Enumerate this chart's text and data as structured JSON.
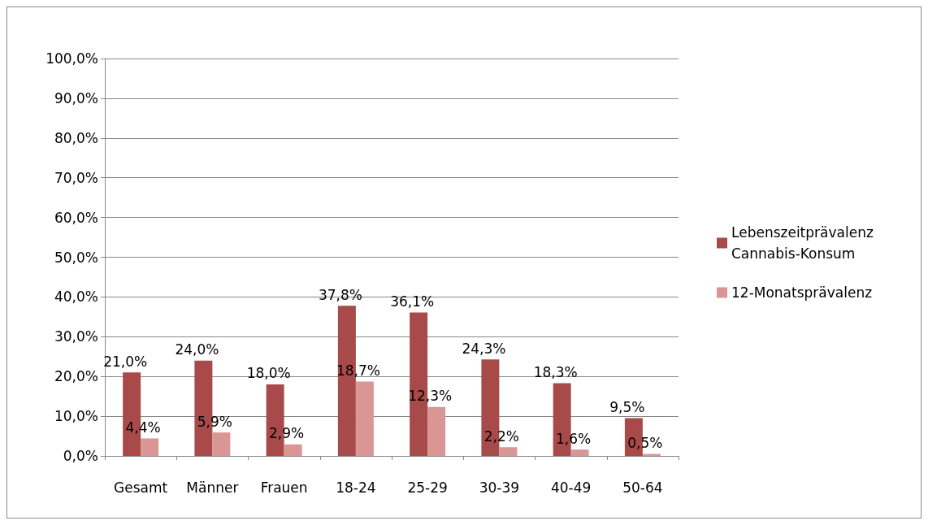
{
  "chart_data": {
    "type": "bar",
    "categories": [
      "Gesamt",
      "Männer",
      "Frauen",
      "18-24",
      "25-29",
      "30-39",
      "40-49",
      "50-64"
    ],
    "series": [
      {
        "name": "Lebenszeitprävalenz Cannabis-Konsum",
        "color": "#a84a4a",
        "values": [
          21.0,
          24.0,
          18.0,
          37.8,
          36.1,
          24.3,
          18.3,
          9.5
        ],
        "value_labels": [
          "21,0%",
          "24,0%",
          "18,0%",
          "37,8%",
          "36,1%",
          "24,3%",
          "18,3%",
          "9,5%"
        ]
      },
      {
        "name": "12-Monatsprävalenz",
        "color": "#d99694",
        "values": [
          4.4,
          5.9,
          2.9,
          18.7,
          12.3,
          2.2,
          1.6,
          0.5
        ],
        "value_labels": [
          "4,4%",
          "5,9%",
          "2,9%",
          "18,7%",
          "12,3%",
          "2,2%",
          "1,6%",
          "0,5%"
        ]
      }
    ],
    "ylim": [
      0,
      100
    ],
    "yticks": [
      {
        "value": 0,
        "label": "0,0%"
      },
      {
        "value": 10,
        "label": "10,0%"
      },
      {
        "value": 20,
        "label": "20,0%"
      },
      {
        "value": 30,
        "label": "30,0%"
      },
      {
        "value": 40,
        "label": "40,0%"
      },
      {
        "value": 50,
        "label": "50,0%"
      },
      {
        "value": 60,
        "label": "60,0%"
      },
      {
        "value": 70,
        "label": "70,0%"
      },
      {
        "value": 80,
        "label": "80,0%"
      },
      {
        "value": 90,
        "label": "90,0%"
      },
      {
        "value": 100,
        "label": "100,0%"
      }
    ],
    "grid": "y",
    "legend": "right"
  }
}
